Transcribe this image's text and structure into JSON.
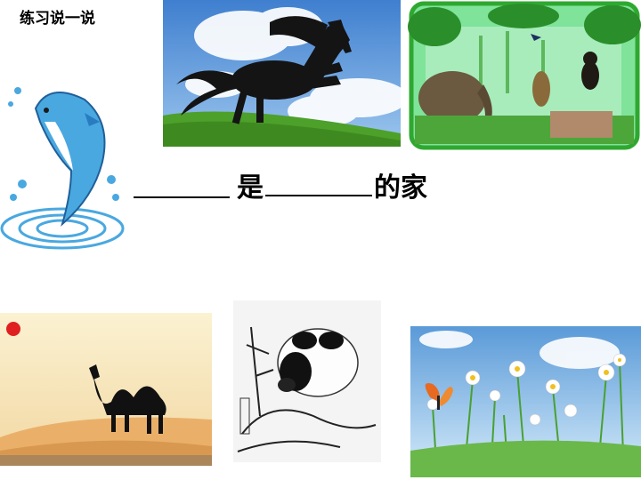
{
  "slide": {
    "title": "练习说一说",
    "sentence": {
      "connector": "是",
      "suffix": "的家"
    }
  },
  "images": [
    {
      "name": "horse-photo",
      "subject": "horse"
    },
    {
      "name": "forest-animals-picture",
      "subject": "forest"
    },
    {
      "name": "dolphin-picture",
      "subject": "dolphin"
    },
    {
      "name": "camel-desert-picture",
      "subject": "camel"
    },
    {
      "name": "panda-ink-painting",
      "subject": "panda"
    },
    {
      "name": "butterfly-meadow-photo",
      "subject": "butterfly"
    }
  ],
  "colors": {
    "sky_blue": "#5a9ad8",
    "grass_green": "#5aa835",
    "desert_sand": "#f0c890",
    "sun_red": "#e02020",
    "dolphin_blue": "#4aa8e0"
  }
}
